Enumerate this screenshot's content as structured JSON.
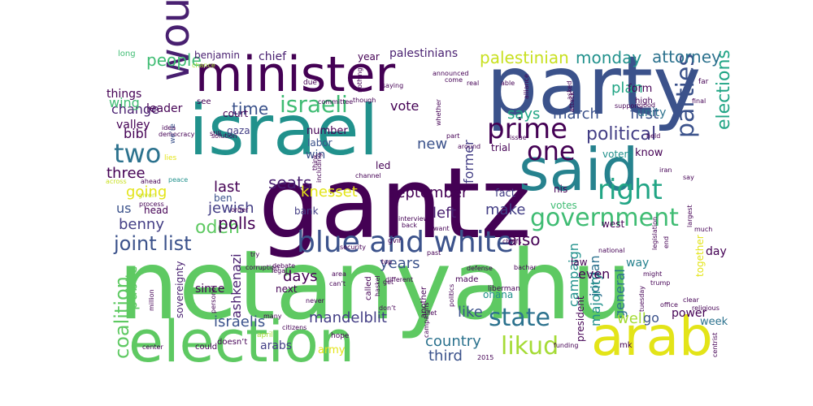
{
  "wordcloud": {
    "words": [
      {
        "text": "netanyahu",
        "color": "#5ec962"
      },
      {
        "text": "gantz",
        "color": "#440154"
      },
      {
        "text": "israel",
        "color": "#21918c"
      },
      {
        "text": "party",
        "color": "#3b528b"
      },
      {
        "text": "election",
        "color": "#5ec962"
      },
      {
        "text": "minister",
        "color": "#440154"
      },
      {
        "text": "said",
        "color": "#26828e"
      },
      {
        "text": "arab",
        "color": "#e3e418"
      },
      {
        "text": "would",
        "color": "#481f70"
      },
      {
        "text": "blue and white",
        "color": "#3b528b"
      },
      {
        "text": "government",
        "color": "#3fbc73"
      },
      {
        "text": "prime",
        "color": "#440154"
      },
      {
        "text": "likud",
        "color": "#a5db36"
      },
      {
        "text": "state",
        "color": "#2c728e"
      },
      {
        "text": "right",
        "color": "#21a585"
      },
      {
        "text": "two",
        "color": "#2c728e"
      },
      {
        "text": "one",
        "color": "#440154"
      },
      {
        "text": "israeli",
        "color": "#3fbc73"
      },
      {
        "text": "parties",
        "color": "#3b528b"
      },
      {
        "text": "political",
        "color": "#433e85"
      },
      {
        "text": "joint list",
        "color": "#3b528b"
      },
      {
        "text": "elections",
        "color": "#21a585"
      },
      {
        "text": "coalition",
        "color": "#5ec962"
      },
      {
        "text": "people",
        "color": "#3fbc73"
      },
      {
        "text": "palestinian",
        "color": "#c8e020"
      },
      {
        "text": "monday",
        "color": "#21918c"
      },
      {
        "text": "attorney",
        "color": "#2c728e"
      },
      {
        "text": "time",
        "color": "#3b528b"
      },
      {
        "text": "says",
        "color": "#21a585"
      },
      {
        "text": "march",
        "color": "#3b528b"
      },
      {
        "text": "first",
        "color": "#3b528b"
      },
      {
        "text": "plan",
        "color": "#21a585"
      },
      {
        "text": "odeh",
        "color": "#5ec962"
      },
      {
        "text": "seats",
        "color": "#481f70"
      },
      {
        "text": "last",
        "color": "#440154"
      },
      {
        "text": "polls",
        "color": "#440154"
      },
      {
        "text": "jewish",
        "color": "#433e85"
      },
      {
        "text": "knesset",
        "color": "#e3e418"
      },
      {
        "text": "september",
        "color": "#440154"
      },
      {
        "text": "left",
        "color": "#481f70"
      },
      {
        "text": "make",
        "color": "#433e85"
      },
      {
        "text": "also",
        "color": "#440154"
      },
      {
        "text": "years",
        "color": "#3b528b"
      },
      {
        "text": "campaign",
        "color": "#21918c"
      },
      {
        "text": "jordan",
        "color": "#2c728e"
      },
      {
        "text": "general",
        "color": "#2c728e"
      },
      {
        "text": "days",
        "color": "#440154"
      },
      {
        "text": "mandelblit",
        "color": "#433e85"
      },
      {
        "text": "country",
        "color": "#2c728e"
      },
      {
        "text": "third",
        "color": "#3b528b"
      },
      {
        "text": "israelis",
        "color": "#3b528b"
      },
      {
        "text": "like",
        "color": "#3b528b"
      },
      {
        "text": "majority",
        "color": "#21918c"
      },
      {
        "text": "well",
        "color": "#a5db36"
      },
      {
        "text": "go",
        "color": "#3b528b"
      },
      {
        "text": "public",
        "color": "#5ec962"
      },
      {
        "text": "ashkenazi",
        "color": "#481f70"
      },
      {
        "text": "benny",
        "color": "#433e85"
      },
      {
        "text": "us",
        "color": "#3b528b"
      },
      {
        "text": "going",
        "color": "#e3e418"
      },
      {
        "text": "three",
        "color": "#440154"
      },
      {
        "text": "change",
        "color": "#481f70"
      },
      {
        "text": "bibi",
        "color": "#440154"
      },
      {
        "text": "wing",
        "color": "#3fbc73"
      },
      {
        "text": "vote",
        "color": "#440154"
      },
      {
        "text": "new",
        "color": "#3b528b"
      },
      {
        "text": "former",
        "color": "#433e85"
      },
      {
        "text": "even",
        "color": "#440154"
      },
      {
        "text": "way",
        "color": "#26828e"
      },
      {
        "text": "unity",
        "color": "#2c728e"
      },
      {
        "text": "benjamin",
        "color": "#481f70"
      },
      {
        "text": "chief",
        "color": "#481f70"
      },
      {
        "text": "year",
        "color": "#440154"
      },
      {
        "text": "palestinians",
        "color": "#481f70"
      },
      {
        "text": "court",
        "color": "#440154"
      },
      {
        "text": "gaza",
        "color": "#433e85"
      },
      {
        "text": "number",
        "color": "#440154"
      },
      {
        "text": "labor",
        "color": "#3b528b"
      },
      {
        "text": "win",
        "color": "#3b528b"
      },
      {
        "text": "led",
        "color": "#440154"
      },
      {
        "text": "ben",
        "color": "#3b528b"
      },
      {
        "text": "bank",
        "color": "#433e85"
      },
      {
        "text": "fact",
        "color": "#433e85"
      },
      {
        "text": "trial",
        "color": "#440154"
      },
      {
        "text": "nis",
        "color": "#440154"
      },
      {
        "text": "votes",
        "color": "#3fbc73"
      },
      {
        "text": "west",
        "color": "#440154"
      },
      {
        "text": "law",
        "color": "#440154"
      },
      {
        "text": "know",
        "color": "#440154"
      },
      {
        "text": "voters",
        "color": "#21918c"
      },
      {
        "text": "since",
        "color": "#440154"
      },
      {
        "text": "next",
        "color": "#440154"
      },
      {
        "text": "ohana",
        "color": "#21918c"
      },
      {
        "text": "arabs",
        "color": "#433e85"
      },
      {
        "text": "army",
        "color": "#e3e418"
      },
      {
        "text": "power",
        "color": "#440154"
      },
      {
        "text": "week",
        "color": "#2c728e"
      },
      {
        "text": "day",
        "color": "#440154"
      },
      {
        "text": "together",
        "color": "#e3e418"
      },
      {
        "text": "head",
        "color": "#440154"
      },
      {
        "text": "leader",
        "color": "#440154"
      },
      {
        "text": "valley",
        "color": "#440154"
      },
      {
        "text": "things",
        "color": "#440154"
      },
      {
        "text": "long",
        "color": "#3fbc73"
      },
      {
        "text": "chance",
        "color": "#a5db36"
      },
      {
        "text": "see",
        "color": "#440154"
      },
      {
        "text": "idea",
        "color": "#440154"
      },
      {
        "text": "democracy",
        "color": "#440154"
      },
      {
        "text": "we’re",
        "color": "#3b528b"
      },
      {
        "text": "lies",
        "color": "#e3e418"
      },
      {
        "text": "peace",
        "color": "#21918c"
      },
      {
        "text": "across",
        "color": "#c8e020"
      },
      {
        "text": "ahead",
        "color": "#440154"
      },
      {
        "text": "given",
        "color": "#c8e020"
      },
      {
        "text": "process",
        "color": "#440154"
      },
      {
        "text": "million",
        "color": "#440154"
      },
      {
        "text": "sovereignty",
        "color": "#481f70"
      },
      {
        "text": "personal",
        "color": "#440154"
      },
      {
        "text": "doesn’t",
        "color": "#440154"
      },
      {
        "text": "many",
        "color": "#440154"
      },
      {
        "text": "center",
        "color": "#440154"
      },
      {
        "text": "could",
        "color": "#440154"
      },
      {
        "text": "april",
        "color": "#a5db36"
      },
      {
        "text": "hope",
        "color": "#440154"
      },
      {
        "text": "citizens",
        "color": "#440154"
      },
      {
        "text": "2015",
        "color": "#440154"
      },
      {
        "text": "mk",
        "color": "#440154"
      },
      {
        "text": "funding",
        "color": "#440154"
      },
      {
        "text": "office",
        "color": "#440154"
      },
      {
        "text": "clear",
        "color": "#440154"
      },
      {
        "text": "centrist",
        "color": "#440154"
      },
      {
        "text": "trump",
        "color": "#440154"
      },
      {
        "text": "religious",
        "color": "#440154"
      },
      {
        "text": "might",
        "color": "#440154"
      },
      {
        "text": "tuesday",
        "color": "#440154"
      },
      {
        "text": "national",
        "color": "#440154"
      },
      {
        "text": "liberman",
        "color": "#440154"
      },
      {
        "text": "bachar",
        "color": "#440154"
      },
      {
        "text": "chiefs",
        "color": "#440154"
      },
      {
        "text": "defense",
        "color": "#440154"
      },
      {
        "text": "past",
        "color": "#440154"
      },
      {
        "text": "want",
        "color": "#440154"
      },
      {
        "text": "interview",
        "color": "#440154"
      },
      {
        "text": "back",
        "color": "#440154"
      },
      {
        "text": "politics",
        "color": "#440154"
      },
      {
        "text": "different",
        "color": "#440154"
      },
      {
        "text": "area",
        "color": "#440154"
      },
      {
        "text": "can’t",
        "color": "#440154"
      },
      {
        "text": "debate",
        "color": "#440154"
      },
      {
        "text": "legal",
        "color": "#440154"
      },
      {
        "text": "haskel",
        "color": "#440154"
      },
      {
        "text": "get",
        "color": "#440154"
      },
      {
        "text": "never",
        "color": "#440154"
      },
      {
        "text": "try",
        "color": "#440154"
      },
      {
        "text": "corruption",
        "color": "#440154"
      },
      {
        "text": "security",
        "color": "#440154"
      },
      {
        "text": "gvir",
        "color": "#440154"
      },
      {
        "text": "top",
        "color": "#440154"
      },
      {
        "text": "legislation",
        "color": "#440154"
      },
      {
        "text": "much",
        "color": "#440154"
      },
      {
        "text": "largest",
        "color": "#440154"
      },
      {
        "text": "end",
        "color": "#440154"
      },
      {
        "text": "iran",
        "color": "#440154"
      },
      {
        "text": "say",
        "color": "#440154"
      },
      {
        "text": "held",
        "color": "#440154"
      },
      {
        "text": "good",
        "color": "#440154"
      },
      {
        "text": "far",
        "color": "#440154"
      },
      {
        "text": "final",
        "color": "#440154"
      },
      {
        "text": "support",
        "color": "#440154"
      },
      {
        "text": "alliance",
        "color": "#440154"
      },
      {
        "text": "asked",
        "color": "#440154"
      },
      {
        "text": "attack",
        "color": "#440154"
      },
      {
        "text": "form",
        "color": "#440154"
      },
      {
        "text": "high",
        "color": "#440154"
      },
      {
        "text": "issue",
        "color": "#440154"
      },
      {
        "text": "though",
        "color": "#440154"
      },
      {
        "text": "announced",
        "color": "#440154"
      },
      {
        "text": "able",
        "color": "#440154"
      },
      {
        "text": "real",
        "color": "#440154"
      },
      {
        "text": "saying",
        "color": "#440154"
      },
      {
        "text": "nothing",
        "color": "#440154"
      },
      {
        "text": "committee",
        "color": "#440154"
      },
      {
        "text": "come",
        "color": "#440154"
      },
      {
        "text": "whether",
        "color": "#440154"
      },
      {
        "text": "part",
        "color": "#440154"
      },
      {
        "text": "channel",
        "color": "#440154"
      },
      {
        "text": "around",
        "color": "#440154"
      },
      {
        "text": "called",
        "color": "#440154"
      },
      {
        "text": "don’t",
        "color": "#440154"
      },
      {
        "text": "let",
        "color": "#440154"
      },
      {
        "text": "another",
        "color": "#440154"
      },
      {
        "text": "made",
        "color": "#440154"
      },
      {
        "text": "president",
        "color": "#440154"
      },
      {
        "text": "campaigns",
        "color": "#440154"
      },
      {
        "text": "including",
        "color": "#440154"
      },
      {
        "text": "solution",
        "color": "#440154"
      },
      {
        "text": "still",
        "color": "#440154"
      },
      {
        "text": "due",
        "color": "#440154"
      },
      {
        "text": "think",
        "color": "#440154"
      },
      {
        "text": "order",
        "color": "#440154"
      }
    ]
  }
}
